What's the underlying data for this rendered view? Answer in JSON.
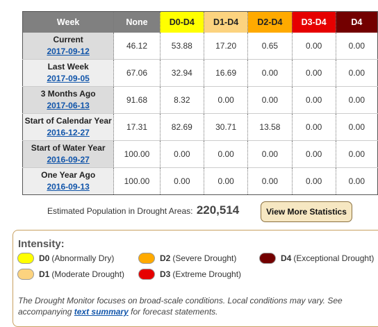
{
  "table": {
    "headers": [
      "Week",
      "None",
      "D0-D4",
      "D1-D4",
      "D2-D4",
      "D3-D4",
      "D4"
    ],
    "rows": [
      {
        "label": "Current",
        "date": "2017-09-12",
        "values": [
          "46.12",
          "53.88",
          "17.20",
          "0.65",
          "0.00",
          "0.00"
        ]
      },
      {
        "label": "Last Week",
        "date": "2017-09-05",
        "values": [
          "67.06",
          "32.94",
          "16.69",
          "0.00",
          "0.00",
          "0.00"
        ]
      },
      {
        "label": "3 Months Ago",
        "date": "2017-06-13",
        "values": [
          "91.68",
          "8.32",
          "0.00",
          "0.00",
          "0.00",
          "0.00"
        ]
      },
      {
        "label": "Start of Calendar Year",
        "date": "2016-12-27",
        "values": [
          "17.31",
          "82.69",
          "30.71",
          "13.58",
          "0.00",
          "0.00"
        ]
      },
      {
        "label": "Start of Water Year",
        "date": "2016-09-27",
        "values": [
          "100.00",
          "0.00",
          "0.00",
          "0.00",
          "0.00",
          "0.00"
        ]
      },
      {
        "label": "One Year Ago",
        "date": "2016-09-13",
        "values": [
          "100.00",
          "0.00",
          "0.00",
          "0.00",
          "0.00",
          "0.00"
        ]
      }
    ]
  },
  "population": {
    "label": "Estimated Population in Drought Areas:",
    "value": "220,514"
  },
  "stats_button": "View More Statistics",
  "legend": {
    "title": "Intensity:",
    "items": [
      {
        "code": "D0",
        "desc": "(Abnormally Dry)",
        "color": "#ffff00"
      },
      {
        "code": "D1",
        "desc": "(Moderate Drought)",
        "color": "#fcd37f"
      },
      {
        "code": "D2",
        "desc": "(Severe Drought)",
        "color": "#ffaa00"
      },
      {
        "code": "D3",
        "desc": "(Extreme Drought)",
        "color": "#e60000"
      },
      {
        "code": "D4",
        "desc": "(Exceptional Drought)",
        "color": "#730000"
      }
    ]
  },
  "note": {
    "text1": "The Drought Monitor focuses on broad-scale conditions. Local conditions may vary. See accompanying",
    "link": "text summary",
    "text2": "for forecast statements."
  }
}
